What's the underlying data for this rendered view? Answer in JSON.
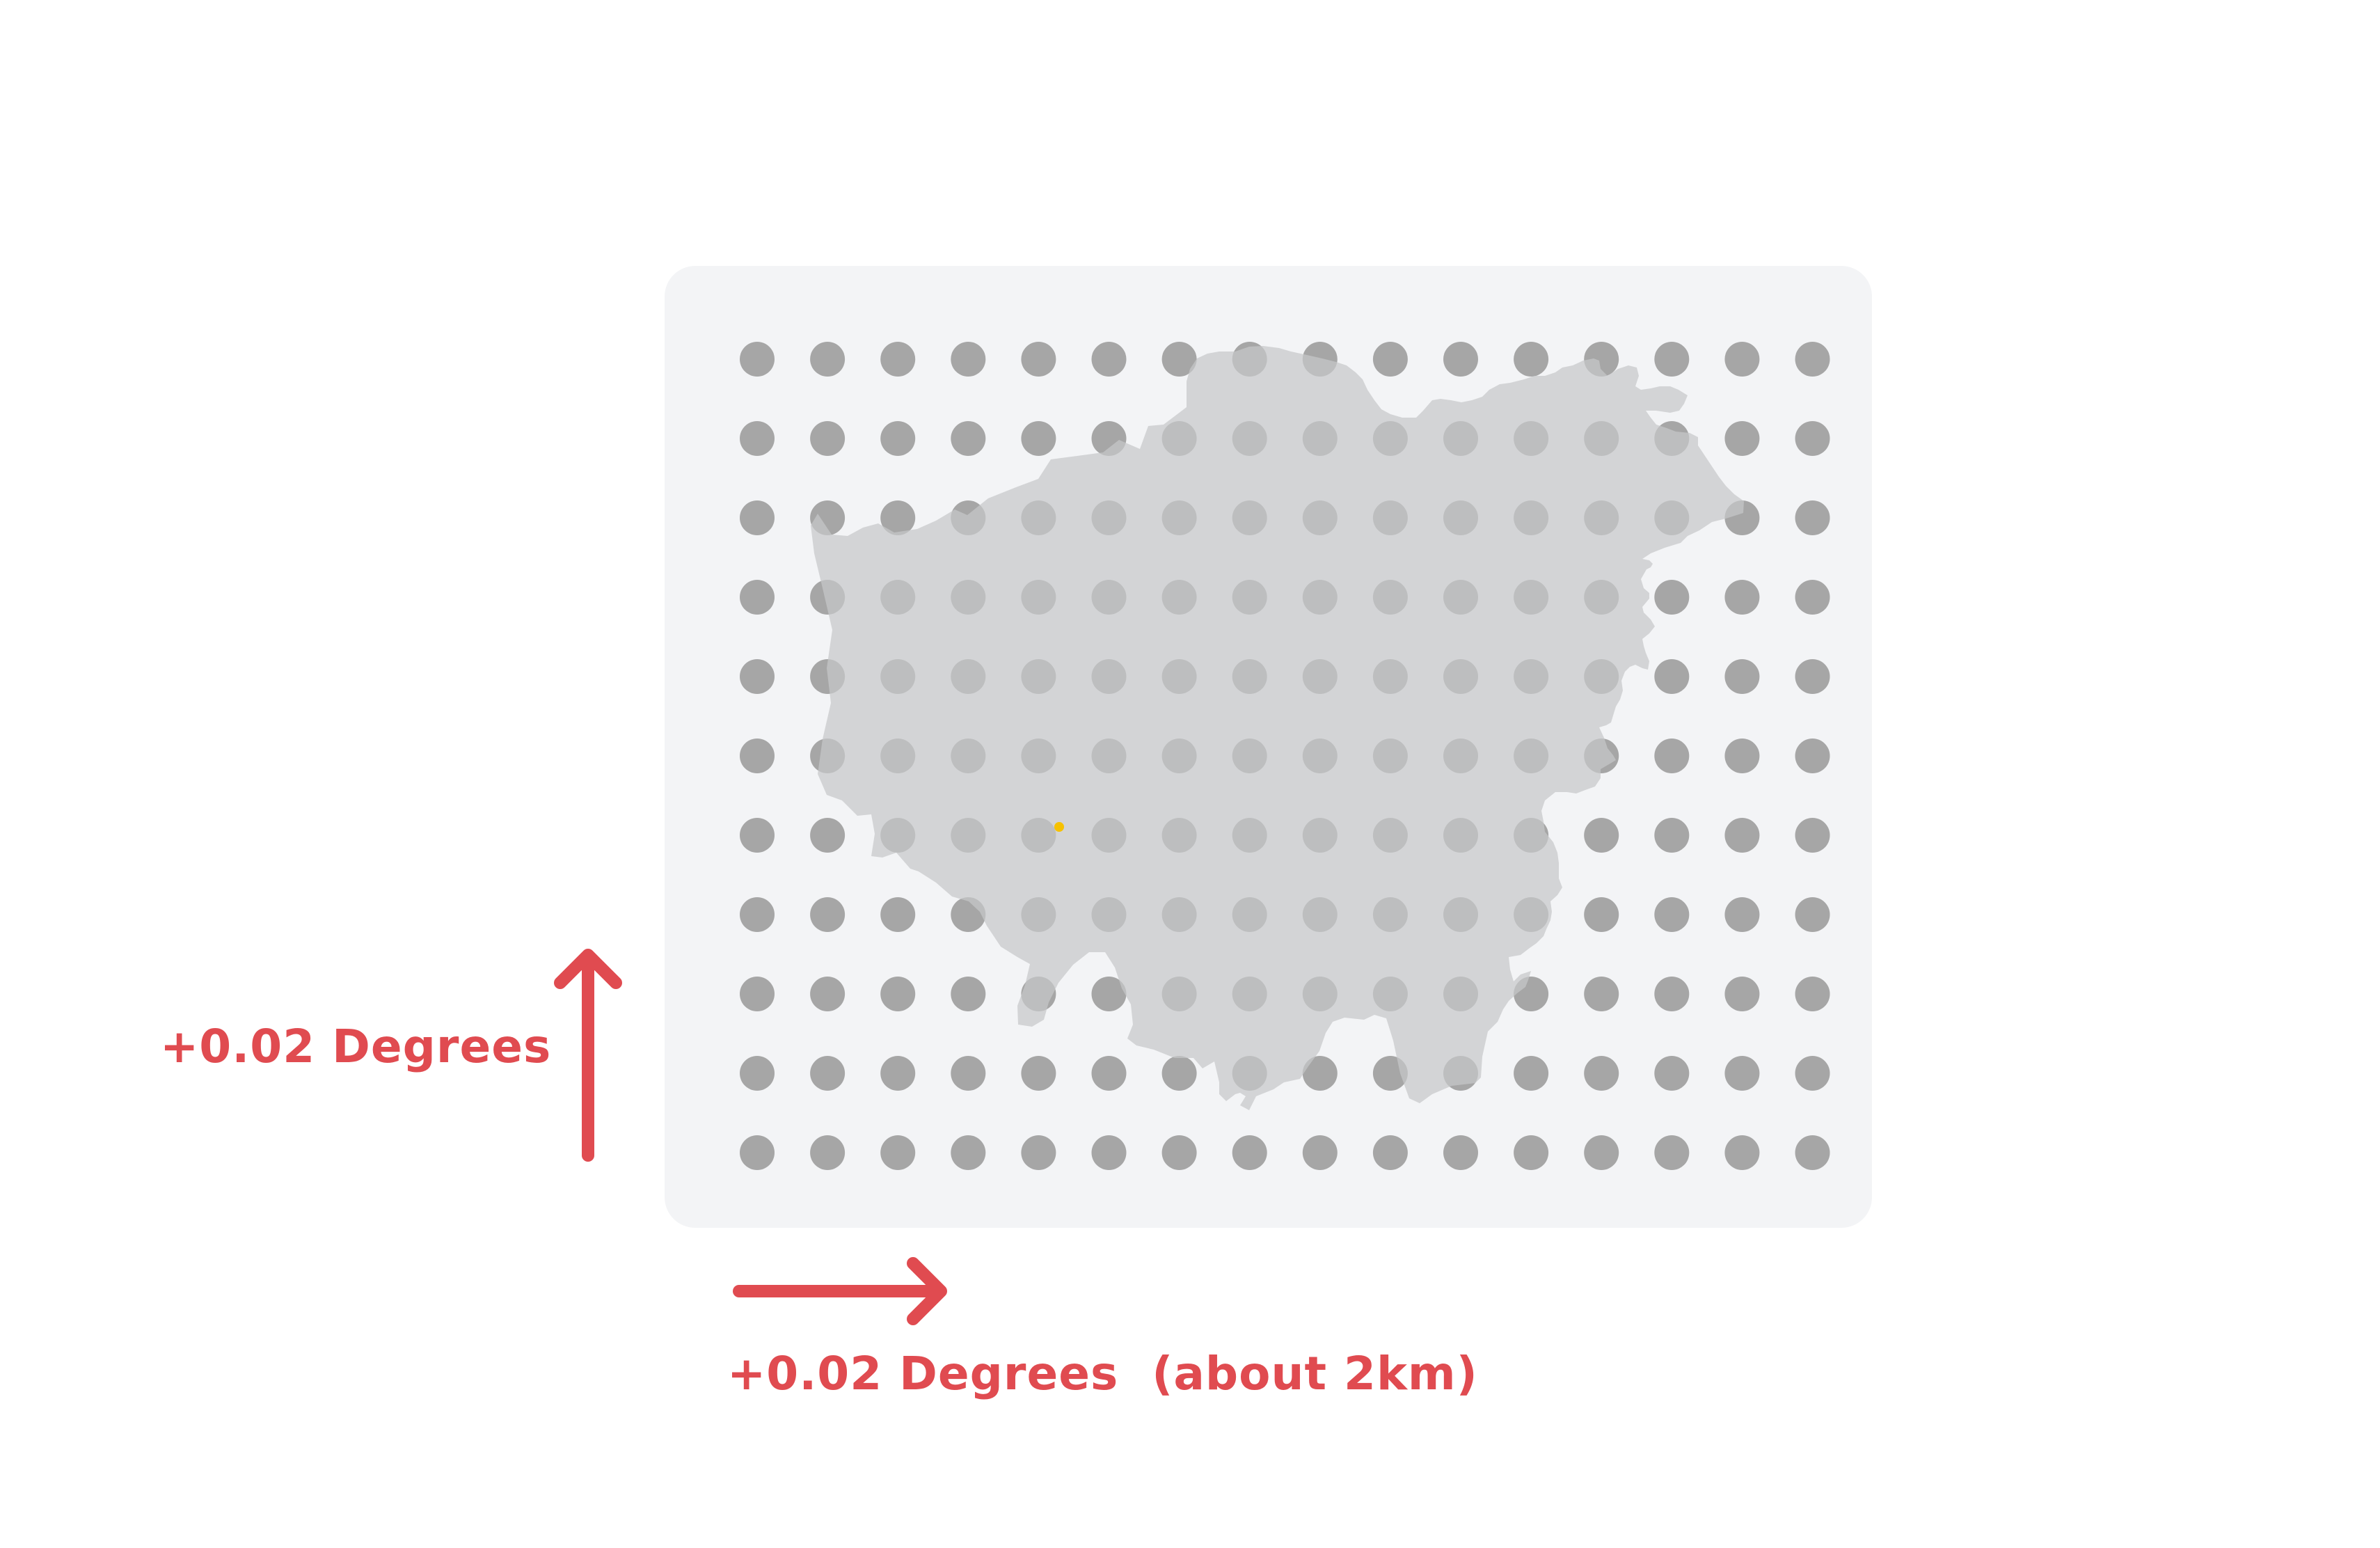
{
  "grid": {
    "rows": 11,
    "columns": 16
  },
  "annotations": {
    "vertical_step_label": "+0.02 Degrees",
    "horizontal_step_label": "+0.02 Degrees  (about 2km)"
  },
  "colors": {
    "panel_background": "#f3f4f6",
    "grid_dot": "#a6a6a6",
    "region_fill": "#c6c7c9",
    "arrow_and_label": "#e04b50",
    "marker": "#f6c100"
  },
  "icons": {
    "up_arrow": "arrow-up-icon",
    "right_arrow": "arrow-right-icon",
    "location_marker": "location-dot-icon"
  }
}
